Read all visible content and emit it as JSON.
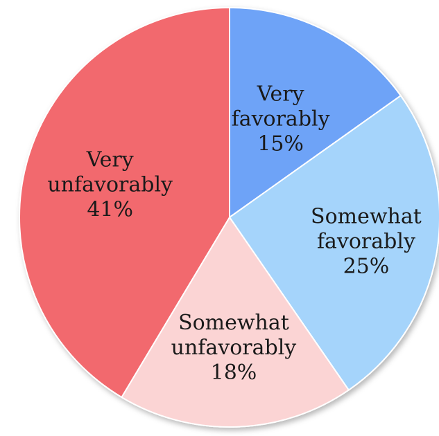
{
  "chart_data": {
    "type": "pie",
    "title": "",
    "slices": [
      {
        "label": "Very favorably",
        "label_lines": [
          "Very",
          "favorably"
        ],
        "value": 15,
        "value_label": "15%",
        "color": "#6ea3f7"
      },
      {
        "label": "Somewhat favorably",
        "label_lines": [
          "Somewhat",
          "favorably"
        ],
        "value": 25,
        "value_label": "25%",
        "color": "#a5d4fb"
      },
      {
        "label": "Somewhat unfavorably",
        "label_lines": [
          "Somewhat",
          "unfavorably"
        ],
        "value": 18,
        "value_label": "18%",
        "color": "#fbd4d4"
      },
      {
        "label": "Very unfavorably",
        "label_lines": [
          "Very",
          "unfavorably"
        ],
        "value": 41,
        "value_label": "41%",
        "color": "#f2696e"
      }
    ],
    "start": "12 o'clock",
    "direction": "clockwise",
    "legend": "none"
  }
}
